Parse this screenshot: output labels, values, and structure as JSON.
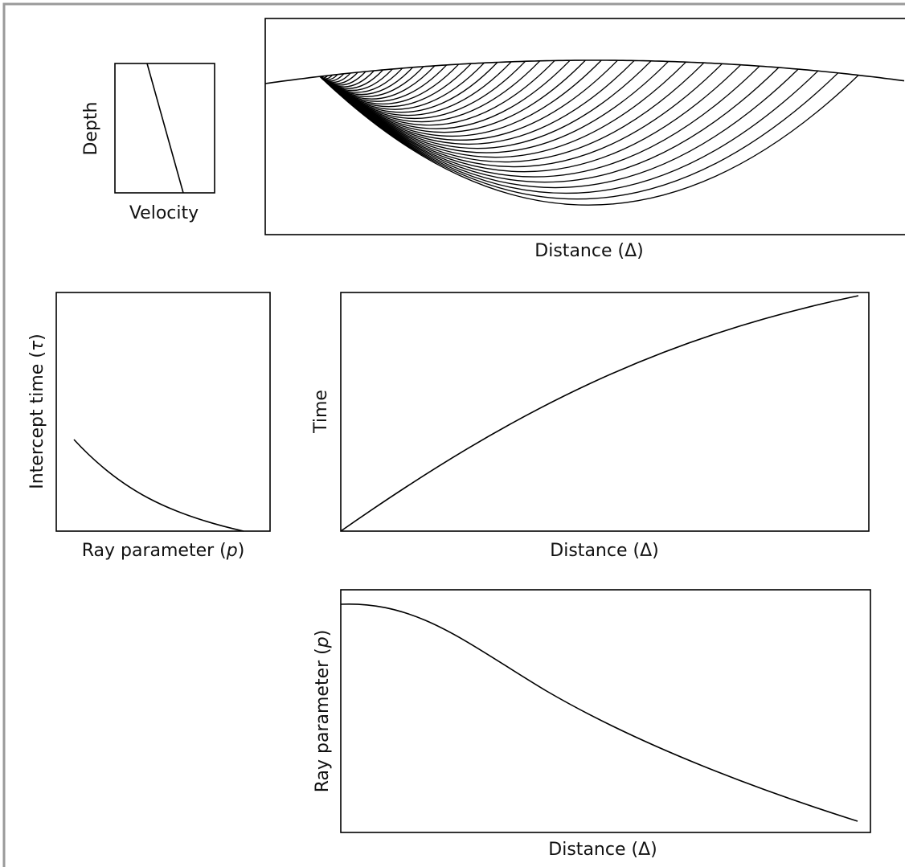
{
  "diagram": {
    "velocity_panel": {
      "y_label": "Depth",
      "x_label": "Velocity"
    },
    "ray_panel": {
      "x_label": "Distance (Δ)"
    },
    "tau_panel": {
      "y_label": [
        "Intercept time (",
        "τ",
        ")"
      ],
      "x_label": [
        "Ray parameter (",
        "p",
        ")"
      ]
    },
    "time_panel": {
      "y_label": "Time",
      "x_label": "Distance (Δ)"
    },
    "p_panel": {
      "y_label": [
        "Ray parameter (",
        "p",
        ")"
      ],
      "x_label": "Distance (Δ)"
    }
  }
}
